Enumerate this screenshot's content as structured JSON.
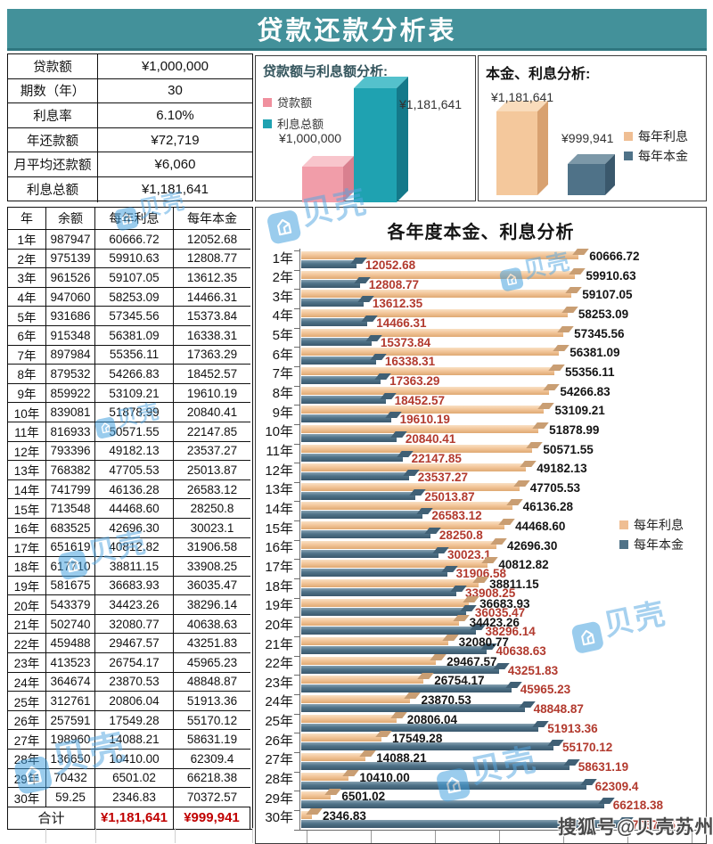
{
  "header": {
    "title": "贷款还款分析表"
  },
  "params": {
    "rows": [
      {
        "label": "贷款额",
        "value": "¥1,000,000"
      },
      {
        "label": "期数（年）",
        "value": "30"
      },
      {
        "label": "利息率",
        "value": "6.10%"
      },
      {
        "label": "年还款额",
        "value": "¥72,719"
      },
      {
        "label": "月平均还款额",
        "value": "¥6,060"
      },
      {
        "label": "利息总额",
        "value": "¥1,181,641"
      }
    ]
  },
  "chart_data": [
    {
      "id": "loan_vs_interest",
      "type": "bar",
      "title": "贷款额与利息额分析:",
      "categories": [
        "贷款额",
        "利息总额"
      ],
      "values": [
        1000000,
        1181641
      ],
      "labels": [
        "¥1,000,000",
        "¥1,181,641"
      ],
      "colors": [
        "#f19da9",
        "#1fa2b1"
      ],
      "legend": [
        {
          "label": "贷款额",
          "color": "#f0909e"
        },
        {
          "label": "利息总额",
          "color": "#1fa2b1"
        }
      ],
      "legend_position": "left",
      "style": "3d-column"
    },
    {
      "id": "principal_vs_interest_totals",
      "type": "bar",
      "title": "本金、利息分析:",
      "categories": [
        "每年利息",
        "每年本金"
      ],
      "values": [
        1181641,
        999941
      ],
      "labels": [
        "¥1,181,641",
        "¥999,941"
      ],
      "colors": [
        "#f3c79b",
        "#4f7288"
      ],
      "legend": [
        {
          "label": "每年利息",
          "color": "#efbe93"
        },
        {
          "label": "每年本金",
          "color": "#4f7288"
        }
      ],
      "legend_position": "right",
      "style": "3d-column"
    },
    {
      "id": "annual_breakdown",
      "type": "bar",
      "orientation": "horizontal",
      "title": "各年度本金、利息分析",
      "xlim": [
        0,
        74000
      ],
      "grid": false,
      "legend_position": "right-middle",
      "categories": [
        "1年",
        "2年",
        "3年",
        "4年",
        "5年",
        "6年",
        "7年",
        "8年",
        "9年",
        "10年",
        "11年",
        "12年",
        "13年",
        "14年",
        "15年",
        "16年",
        "17年",
        "18年",
        "19年",
        "20年",
        "21年",
        "22年",
        "23年",
        "24年",
        "25年",
        "26年",
        "27年",
        "28年",
        "29年",
        "30年"
      ],
      "series": [
        {
          "name": "每年利息",
          "color": "#f3c79b",
          "label_color": "#141414",
          "values": [
            60666.72,
            59910.63,
            59107.05,
            58253.09,
            57345.56,
            56381.09,
            55356.11,
            54266.83,
            53109.21,
            51878.99,
            50571.55,
            49182.13,
            47705.53,
            46136.28,
            44468.6,
            42696.3,
            40812.82,
            38811.15,
            36683.93,
            34423.26,
            32080.77,
            29467.57,
            26754.17,
            23870.53,
            20806.04,
            17549.28,
            14088.21,
            10410.0,
            6501.02,
            2346.83
          ],
          "labels": [
            "60666.72",
            "59910.63",
            "59107.05",
            "58253.09",
            "57345.56",
            "56381.09",
            "55356.11",
            "54266.83",
            "53109.21",
            "51878.99",
            "50571.55",
            "49182.13",
            "47705.53",
            "46136.28",
            "44468.60",
            "42696.30",
            "40812.82",
            "38811.15",
            "36683.93",
            "34423.26",
            "32080.77",
            "29467.57",
            "26754.17",
            "23870.53",
            "20806.04",
            "17549.28",
            "14088.21",
            "10410.00",
            "6501.02",
            "2346.83"
          ]
        },
        {
          "name": "每年本金",
          "color": "#4f7288",
          "label_color": "#b23a2e",
          "values": [
            12052.68,
            12808.77,
            13612.35,
            14466.31,
            15373.84,
            16338.31,
            17363.29,
            18452.57,
            19610.19,
            20840.41,
            22147.85,
            23537.27,
            25013.87,
            26583.12,
            28250.8,
            30023.1,
            31906.58,
            33908.25,
            36035.47,
            38296.14,
            40638.63,
            43251.83,
            45965.23,
            48848.87,
            51913.36,
            55170.12,
            58631.19,
            62309.4,
            66218.38,
            70372.57
          ],
          "labels": [
            "12052.68",
            "12808.77",
            "13612.35",
            "14466.31",
            "15373.84",
            "16338.31",
            "17363.29",
            "18452.57",
            "19610.19",
            "20840.41",
            "22147.85",
            "23537.27",
            "25013.87",
            "26583.12",
            "28250.8",
            "30023.1",
            "31906.58",
            "33908.25",
            "36035.47",
            "38296.14",
            "40638.63",
            "43251.83",
            "45965.23",
            "48848.87",
            "51913.36",
            "55170.12",
            "58631.19",
            "62309.4",
            "66218.38",
            "70372.57"
          ]
        }
      ],
      "legend": [
        {
          "label": "每年利息",
          "color": "#efbe93"
        },
        {
          "label": "每年本金",
          "color": "#4f7288"
        }
      ]
    },
    {
      "id": "amortization_table",
      "type": "table",
      "headers": [
        "年",
        "余额",
        "每年利息",
        "每年本金"
      ],
      "rows": [
        [
          "1年",
          "987947",
          "60666.72",
          "12052.68"
        ],
        [
          "2年",
          "975139",
          "59910.63",
          "12808.77"
        ],
        [
          "3年",
          "961526",
          "59107.05",
          "13612.35"
        ],
        [
          "4年",
          "947060",
          "58253.09",
          "14466.31"
        ],
        [
          "5年",
          "931686",
          "57345.56",
          "15373.84"
        ],
        [
          "6年",
          "915348",
          "56381.09",
          "16338.31"
        ],
        [
          "7年",
          "897984",
          "55356.11",
          "17363.29"
        ],
        [
          "8年",
          "879532",
          "54266.83",
          "18452.57"
        ],
        [
          "9年",
          "859922",
          "53109.21",
          "19610.19"
        ],
        [
          "10年",
          "839081",
          "51878.99",
          "20840.41"
        ],
        [
          "11年",
          "816933",
          "50571.55",
          "22147.85"
        ],
        [
          "12年",
          "793396",
          "49182.13",
          "23537.27"
        ],
        [
          "13年",
          "768382",
          "47705.53",
          "25013.87"
        ],
        [
          "14年",
          "741799",
          "46136.28",
          "26583.12"
        ],
        [
          "15年",
          "713548",
          "44468.60",
          "28250.8"
        ],
        [
          "16年",
          "683525",
          "42696.30",
          "30023.1"
        ],
        [
          "17年",
          "651619",
          "40812.82",
          "31906.58"
        ],
        [
          "18年",
          "617710",
          "38811.15",
          "33908.25"
        ],
        [
          "19年",
          "581675",
          "36683.93",
          "36035.47"
        ],
        [
          "20年",
          "543379",
          "34423.26",
          "38296.14"
        ],
        [
          "21年",
          "502740",
          "32080.77",
          "40638.63"
        ],
        [
          "22年",
          "459488",
          "29467.57",
          "43251.83"
        ],
        [
          "23年",
          "413523",
          "26754.17",
          "45965.23"
        ],
        [
          "24年",
          "364674",
          "23870.53",
          "48848.87"
        ],
        [
          "25年",
          "312761",
          "20806.04",
          "51913.36"
        ],
        [
          "26年",
          "257591",
          "17549.28",
          "55170.12"
        ],
        [
          "27年",
          "198960",
          "14088.21",
          "58631.19"
        ],
        [
          "28年",
          "136650",
          "10410.00",
          "62309.4"
        ],
        [
          "29年",
          "70432",
          "6501.02",
          "66218.38"
        ],
        [
          "30年",
          "59.25",
          "2346.83",
          "70372.57"
        ]
      ],
      "total_row": {
        "label": "合计",
        "interest": "¥1,181,641",
        "principal": "¥999,941"
      }
    }
  ],
  "watermark": {
    "brand": "贝壳",
    "footer": "搜狐号@贝壳苏州站"
  },
  "colors": {
    "header_bg": "#43919a",
    "total_red": "#c00000",
    "chart_label_red": "#b23a2e",
    "interest_tan": "#f3c79b",
    "principal_slate": "#4f7288",
    "loan_pink": "#f19da9",
    "interest_teal": "#1fa2b1",
    "watermark_blue": "#3f9edd"
  }
}
